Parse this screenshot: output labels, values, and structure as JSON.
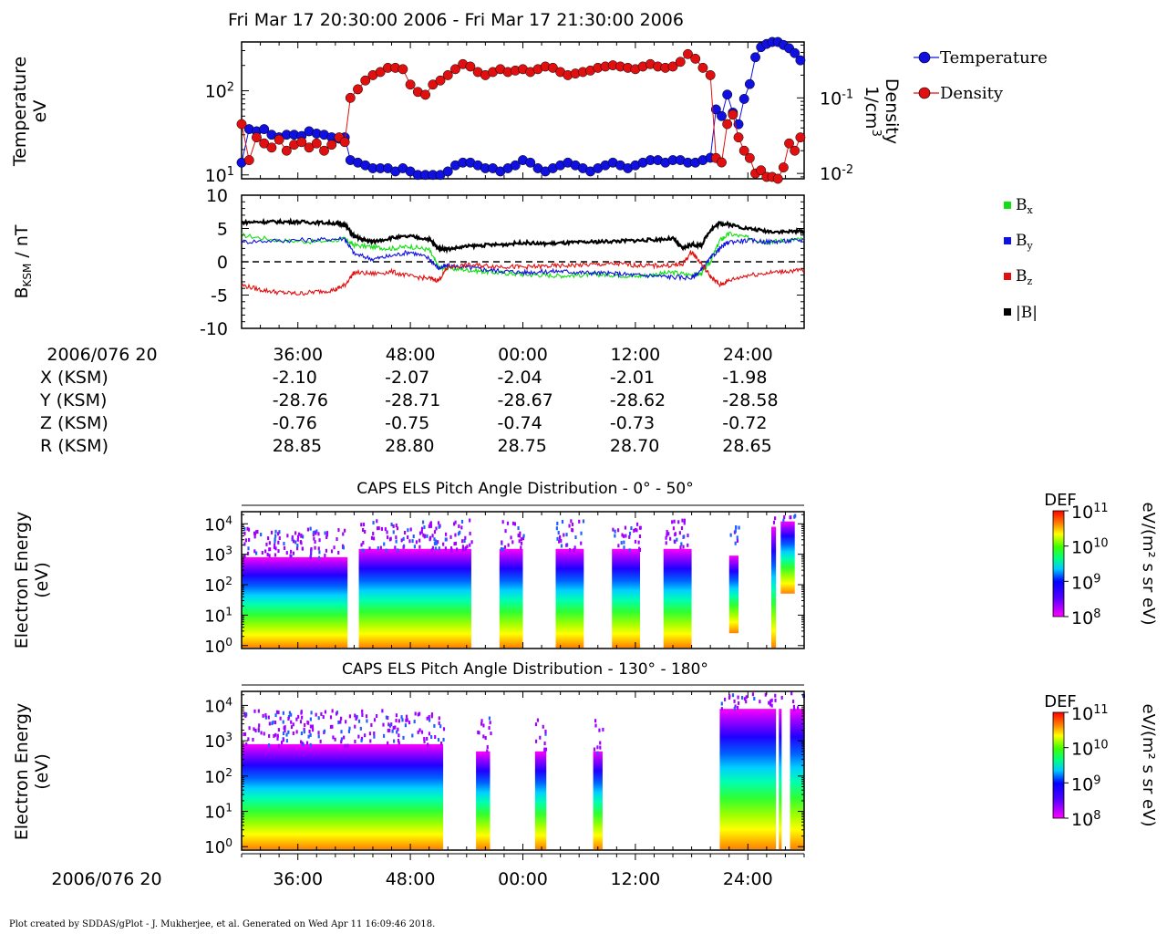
{
  "title": "Fri Mar 17 20:30:00 2006 - Fri Mar 17 21:30:00 2006",
  "footer": "Plot created by SDDAS/gPlot - J. Mukherjee, et al.  Generated on Wed Apr 11 16:09:46 2018.",
  "colors": {
    "temperature": "#1010e0",
    "density": "#e01010",
    "bx": "#10e010",
    "by": "#1010e0",
    "bz": "#e01010",
    "bmag": "#000000"
  },
  "chart_data": [
    {
      "type": "line",
      "ylabel_main": "Temperature",
      "ylabel_unit": "eV",
      "y2label_main": "Density",
      "y2label_unit": "1/cm",
      "y2label_unit_sup": "3",
      "yscale": "log",
      "ylim": [
        9,
        380
      ],
      "y2lim": [
        0.0085,
        0.55
      ],
      "xlim_minutes": [
        30,
        90
      ],
      "ytick_labels": [
        {
          "value": 100,
          "base": "10",
          "exp": "2"
        },
        {
          "value": 10,
          "base": "10",
          "exp": "1"
        }
      ],
      "y2tick_labels": [
        {
          "value": 0.1,
          "base": "10",
          "exp": "-1"
        },
        {
          "value": 0.01,
          "base": "10",
          "exp": "-2"
        }
      ],
      "legend": [
        "Temperature",
        "Density"
      ],
      "series": [
        {
          "name": "Temperature",
          "axis": "left",
          "x": [
            30.0,
            30.8,
            31.6,
            32.4,
            33.2,
            34.0,
            34.8,
            35.6,
            36.4,
            37.2,
            38.0,
            38.8,
            39.6,
            40.4,
            41.0,
            41.6,
            42.4,
            43.2,
            44.0,
            44.8,
            45.6,
            46.4,
            47.2,
            48.0,
            48.8,
            49.6,
            50.4,
            51.2,
            52.0,
            52.8,
            53.6,
            54.4,
            55.2,
            56.0,
            56.8,
            57.6,
            58.4,
            59.2,
            60.0,
            60.8,
            61.6,
            62.4,
            63.2,
            64.0,
            64.8,
            65.6,
            66.4,
            67.2,
            68.0,
            68.8,
            69.6,
            70.4,
            71.2,
            72.0,
            72.8,
            73.6,
            74.4,
            75.2,
            76.0,
            76.8,
            77.6,
            78.4,
            79.2,
            80.0,
            80.6,
            81.2,
            81.8,
            82.4,
            83.0,
            83.6,
            84.2,
            84.8,
            85.4,
            86.0,
            86.6,
            87.2,
            87.8,
            88.4,
            89.0,
            89.6
          ],
          "y": [
            14,
            35,
            33,
            35,
            30,
            28,
            30,
            30,
            29,
            33,
            31,
            30,
            28,
            27,
            28,
            15,
            14,
            13,
            12,
            12,
            12,
            11,
            12,
            11,
            10,
            10,
            10,
            10,
            11,
            13,
            14,
            14,
            13,
            12,
            12,
            11,
            12,
            13,
            15,
            14,
            12,
            11,
            12,
            13,
            14,
            13,
            12,
            11,
            12,
            13,
            14,
            13,
            12,
            13,
            14,
            15,
            15,
            14,
            15,
            15,
            14,
            14,
            15,
            16,
            60,
            50,
            90,
            55,
            40,
            80,
            120,
            250,
            330,
            360,
            380,
            380,
            350,
            320,
            280,
            230
          ]
        },
        {
          "name": "Density",
          "axis": "right",
          "x": [
            30.0,
            30.8,
            31.6,
            32.4,
            33.2,
            34.0,
            34.8,
            35.6,
            36.4,
            37.2,
            38.0,
            38.8,
            39.6,
            40.4,
            41.0,
            41.6,
            42.4,
            43.2,
            44.0,
            44.8,
            45.6,
            46.4,
            47.2,
            48.0,
            48.8,
            49.6,
            50.4,
            51.2,
            52.0,
            52.8,
            53.6,
            54.4,
            55.2,
            56.0,
            56.8,
            57.6,
            58.4,
            59.2,
            60.0,
            60.8,
            61.6,
            62.4,
            63.2,
            64.0,
            64.8,
            65.6,
            66.4,
            67.2,
            68.0,
            68.8,
            69.6,
            70.4,
            71.2,
            72.0,
            72.8,
            73.6,
            74.4,
            75.2,
            76.0,
            76.8,
            77.6,
            78.4,
            79.2,
            80.0,
            80.6,
            81.2,
            81.8,
            82.4,
            83.0,
            83.6,
            84.2,
            84.8,
            85.4,
            86.0,
            86.6,
            87.2,
            87.8,
            88.4,
            89.0,
            89.6
          ],
          "y": [
            0.045,
            0.015,
            0.03,
            0.025,
            0.022,
            0.028,
            0.02,
            0.024,
            0.026,
            0.022,
            0.025,
            0.02,
            0.024,
            0.03,
            0.026,
            0.1,
            0.13,
            0.17,
            0.2,
            0.22,
            0.25,
            0.25,
            0.24,
            0.15,
            0.12,
            0.11,
            0.15,
            0.17,
            0.2,
            0.24,
            0.28,
            0.26,
            0.22,
            0.2,
            0.22,
            0.24,
            0.22,
            0.23,
            0.24,
            0.22,
            0.24,
            0.26,
            0.25,
            0.22,
            0.2,
            0.21,
            0.22,
            0.23,
            0.25,
            0.26,
            0.27,
            0.26,
            0.25,
            0.24,
            0.26,
            0.28,
            0.26,
            0.25,
            0.26,
            0.3,
            0.38,
            0.33,
            0.25,
            0.2,
            0.016,
            0.014,
            0.045,
            0.06,
            0.03,
            0.02,
            0.016,
            0.01,
            0.011,
            0.009,
            0.009,
            0.008,
            0.012,
            0.025,
            0.02,
            0.03
          ]
        }
      ]
    },
    {
      "type": "line",
      "ylabel_main": "B",
      "ylabel_sub": "KSM",
      "ylabel_unit": " / nT",
      "ylim": [
        -10,
        10
      ],
      "yticks": [
        10,
        5,
        0,
        -5,
        -10
      ],
      "xlim_minutes": [
        30,
        90
      ],
      "legend": [
        {
          "base": "B",
          "sub": "x"
        },
        {
          "base": "B",
          "sub": "y"
        },
        {
          "base": "B",
          "sub": "z"
        },
        {
          "base": "|B|",
          "sub": ""
        }
      ],
      "series": [
        {
          "name": "Bx",
          "x": [
            30,
            34,
            38,
            41,
            42,
            44,
            46,
            48,
            50,
            51,
            52,
            54,
            56,
            58,
            60,
            62,
            64,
            66,
            68,
            70,
            72,
            74,
            76,
            78,
            79,
            80,
            81,
            82,
            84,
            86,
            88,
            90
          ],
          "y": [
            4.0,
            3.2,
            3.0,
            3.4,
            2.5,
            2.2,
            2.0,
            2.3,
            1.8,
            -0.8,
            -1.0,
            -1.2,
            -1.5,
            -1.7,
            -1.9,
            -2.0,
            -2.1,
            -2.0,
            -1.9,
            -2.0,
            -2.2,
            -1.9,
            -1.6,
            -2.0,
            -1.8,
            0.0,
            3.2,
            4.2,
            3.6,
            3.0,
            3.2,
            3.4
          ]
        },
        {
          "name": "By",
          "x": [
            30,
            34,
            38,
            41,
            42,
            44,
            46,
            48,
            50,
            51,
            52,
            54,
            56,
            58,
            60,
            62,
            64,
            66,
            68,
            70,
            72,
            74,
            76,
            78,
            79,
            80,
            81,
            82,
            84,
            86,
            88,
            90
          ],
          "y": [
            3.0,
            3.2,
            3.3,
            3.5,
            1.2,
            0.4,
            0.9,
            1.5,
            0.5,
            -1.0,
            -0.6,
            -0.8,
            -1.2,
            -1.4,
            -1.6,
            -1.5,
            -1.4,
            -1.6,
            -1.7,
            -1.8,
            -2.0,
            -2.1,
            -2.3,
            -2.4,
            -1.3,
            0.5,
            2.0,
            3.0,
            3.2,
            3.0,
            3.1,
            3.3
          ]
        },
        {
          "name": "Bz",
          "x": [
            30,
            32,
            34,
            36,
            38,
            40,
            41,
            42,
            44,
            46,
            48,
            50,
            51,
            52,
            54,
            56,
            58,
            60,
            62,
            64,
            66,
            68,
            70,
            72,
            74,
            76,
            77,
            78,
            79,
            80,
            81,
            82,
            84,
            86,
            88,
            90
          ],
          "y": [
            -3.5,
            -4.2,
            -4.6,
            -4.8,
            -4.5,
            -4.2,
            -3.5,
            -1.6,
            -1.8,
            -1.5,
            -2.2,
            -2.5,
            -2.8,
            -0.8,
            -0.5,
            -0.6,
            -0.7,
            -0.8,
            -0.7,
            -0.6,
            -0.5,
            -0.4,
            -0.3,
            -0.5,
            -0.6,
            -0.5,
            -0.4,
            1.5,
            -0.2,
            -2.2,
            -3.5,
            -2.8,
            -2.0,
            -1.7,
            -1.4,
            -1.3
          ]
        },
        {
          "name": "|B|",
          "x": [
            30,
            32,
            34,
            36,
            38,
            40,
            41,
            42,
            43,
            44,
            46,
            48,
            50,
            51,
            52,
            54,
            56,
            58,
            60,
            62,
            64,
            66,
            68,
            70,
            72,
            74,
            76,
            77,
            78,
            79,
            80,
            81,
            82,
            84,
            86,
            88,
            90
          ],
          "y": [
            5.9,
            6.0,
            6.0,
            6.0,
            5.9,
            5.8,
            5.6,
            3.8,
            3.3,
            3.0,
            3.6,
            3.8,
            3.4,
            2.0,
            1.9,
            2.3,
            2.5,
            2.6,
            2.9,
            2.7,
            2.8,
            2.9,
            3.0,
            3.1,
            3.2,
            3.3,
            3.5,
            2.0,
            2.6,
            2.4,
            4.8,
            5.8,
            5.6,
            5.0,
            4.6,
            4.5,
            4.6
          ]
        }
      ]
    },
    {
      "type": "heatmap",
      "title": "CAPS ELS Pitch Angle Distribution - 0° - 50°",
      "ylabel_main": "Electron Energy",
      "ylabel_unit": "(eV)",
      "yscale": "log",
      "ylim": [
        0.8,
        25000
      ],
      "xlim_minutes": [
        30,
        90
      ],
      "ytick_labels": [
        {
          "base": "10",
          "exp": "4"
        },
        {
          "base": "10",
          "exp": "3"
        },
        {
          "base": "10",
          "exp": "2"
        },
        {
          "base": "10",
          "exp": "1"
        },
        {
          "base": "10",
          "exp": "0"
        }
      ],
      "colorbar": {
        "label": "DEF",
        "unit": "eV/(m² s sr eV)",
        "min_exp": 8,
        "max_exp": 11,
        "tick_labels": [
          {
            "base": "10",
            "exp": "11"
          },
          {
            "base": "10",
            "exp": "10"
          },
          {
            "base": "10",
            "exp": "9"
          },
          {
            "base": "10",
            "exp": "8"
          }
        ]
      },
      "data_intervals_minutes": [
        [
          30,
          41.3
        ],
        [
          42.5,
          54.5
        ],
        [
          57.5,
          60.0
        ],
        [
          63.5,
          66.5
        ],
        [
          69.5,
          72.5
        ],
        [
          75.0,
          78.0
        ],
        [
          82.0,
          83.0
        ],
        [
          86.5,
          87.0
        ],
        [
          87.5,
          89.0
        ]
      ],
      "high_energy_cutoff_eV": [
        800,
        1500,
        1500,
        1500,
        1500,
        1500,
        900,
        8000,
        12000
      ],
      "low_energy_cutoff_eV": [
        1,
        1,
        1,
        1,
        1,
        1,
        3,
        1,
        60
      ]
    },
    {
      "type": "heatmap",
      "title": "CAPS ELS Pitch Angle Distribution - 130° - 180°",
      "ylabel_main": "Electron Energy",
      "ylabel_unit": "(eV)",
      "yscale": "log",
      "ylim": [
        0.8,
        25000
      ],
      "xlim_minutes": [
        30,
        90
      ],
      "ytick_labels": [
        {
          "base": "10",
          "exp": "4"
        },
        {
          "base": "10",
          "exp": "3"
        },
        {
          "base": "10",
          "exp": "2"
        },
        {
          "base": "10",
          "exp": "1"
        },
        {
          "base": "10",
          "exp": "0"
        }
      ],
      "colorbar": {
        "label": "DEF",
        "unit": "eV/(m² s sr eV)",
        "min_exp": 8,
        "max_exp": 11,
        "tick_labels": [
          {
            "base": "10",
            "exp": "11"
          },
          {
            "base": "10",
            "exp": "10"
          },
          {
            "base": "10",
            "exp": "9"
          },
          {
            "base": "10",
            "exp": "8"
          }
        ]
      },
      "data_intervals_minutes": [
        [
          30,
          51.5
        ],
        [
          55.0,
          56.5
        ],
        [
          61.3,
          62.5
        ],
        [
          67.5,
          68.5
        ],
        [
          81.0,
          87.0
        ],
        [
          87.3,
          87.6
        ],
        [
          88.5,
          90.0
        ]
      ],
      "high_energy_cutoff_eV": [
        800,
        500,
        500,
        500,
        8000,
        8000,
        8000
      ],
      "low_energy_cutoff_eV": [
        1,
        1,
        1,
        1,
        1,
        1,
        1
      ]
    }
  ],
  "ephemeris": {
    "header": "2006/076 20",
    "ticks": [
      "36:00",
      "48:00",
      "00:00",
      "12:00",
      "24:00"
    ],
    "tick_minutes": [
      36,
      48,
      60,
      72,
      84
    ],
    "rows": [
      {
        "label": "X (KSM)",
        "values": [
          "-2.10",
          "-2.07",
          "-2.04",
          "-2.01",
          "-1.98"
        ]
      },
      {
        "label": "Y (KSM)",
        "values": [
          "-28.76",
          "-28.71",
          "-28.67",
          "-28.62",
          "-28.58"
        ]
      },
      {
        "label": "Z (KSM)",
        "values": [
          "-0.76",
          "-0.75",
          "-0.74",
          "-0.73",
          "-0.72"
        ]
      },
      {
        "label": "R (KSM)",
        "values": [
          "28.85",
          "28.80",
          "28.75",
          "28.70",
          "28.65"
        ]
      }
    ]
  },
  "bottom_axis": {
    "header": "2006/076 20",
    "ticks": [
      "36:00",
      "48:00",
      "00:00",
      "12:00",
      "24:00"
    ]
  }
}
